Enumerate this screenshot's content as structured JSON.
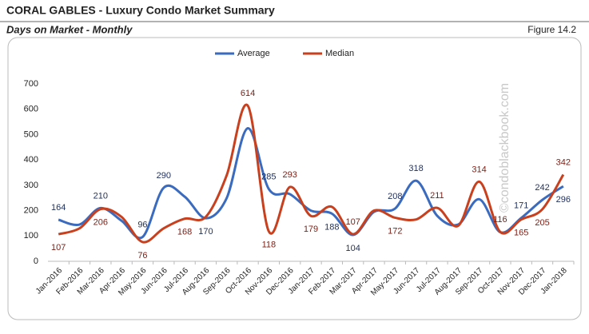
{
  "chart_data": {
    "type": "line",
    "title": "CORAL GABLES - Luxury Condo Market Summary",
    "subtitle": "Days on Market - Monthly",
    "figure_label": "Figure 14.2",
    "watermark": "©condoblackbook.com",
    "categories": [
      "Jan-2016",
      "Feb-2016",
      "Mar-2016",
      "Apr-2016",
      "May-2016",
      "Jun-2016",
      "Jul-2016",
      "Aug-2016",
      "Sep-2016",
      "Oct-2016",
      "Nov-2016",
      "Dec-2016",
      "Jan-2017",
      "Feb-2017",
      "Mar-2017",
      "Apr-2017",
      "May-2017",
      "Jun-2017",
      "Jul-2017",
      "Aug-2017",
      "Sep-2017",
      "Oct-2017",
      "Nov-2017",
      "Dec-2017",
      "Jan-2018"
    ],
    "series": [
      {
        "name": "Average",
        "color": "#3a6bbf",
        "label_color": "#1f2f5a",
        "values": [
          164,
          145,
          210,
          160,
          96,
          290,
          255,
          170,
          250,
          525,
          285,
          265,
          200,
          188,
          104,
          195,
          208,
          318,
          180,
          145,
          245,
          115,
          171,
          242,
          296
        ],
        "value_labels": [
          "164",
          null,
          "210",
          null,
          "96",
          "290",
          null,
          "170",
          null,
          null,
          "285",
          null,
          null,
          "188",
          "104",
          null,
          "208",
          "318",
          null,
          null,
          null,
          null,
          "171",
          "242",
          "296"
        ]
      },
      {
        "name": "Median",
        "color": "#c8401e",
        "label_color": "#7a1e14",
        "values": [
          107,
          130,
          206,
          175,
          76,
          130,
          168,
          175,
          340,
          614,
          118,
          293,
          179,
          215,
          107,
          200,
          172,
          165,
          211,
          140,
          314,
          116,
          165,
          205,
          342
        ],
        "value_labels": [
          "107",
          null,
          "206",
          null,
          "76",
          null,
          "168",
          null,
          null,
          "614",
          "118",
          "293",
          "179",
          null,
          "107",
          null,
          "172",
          null,
          "211",
          null,
          "314",
          "116",
          "165",
          "205",
          "342"
        ]
      }
    ],
    "ylim": [
      0,
      700
    ],
    "yticks": [
      0,
      100,
      200,
      300,
      400,
      500,
      600,
      700
    ],
    "grid": false,
    "legend": "top"
  }
}
